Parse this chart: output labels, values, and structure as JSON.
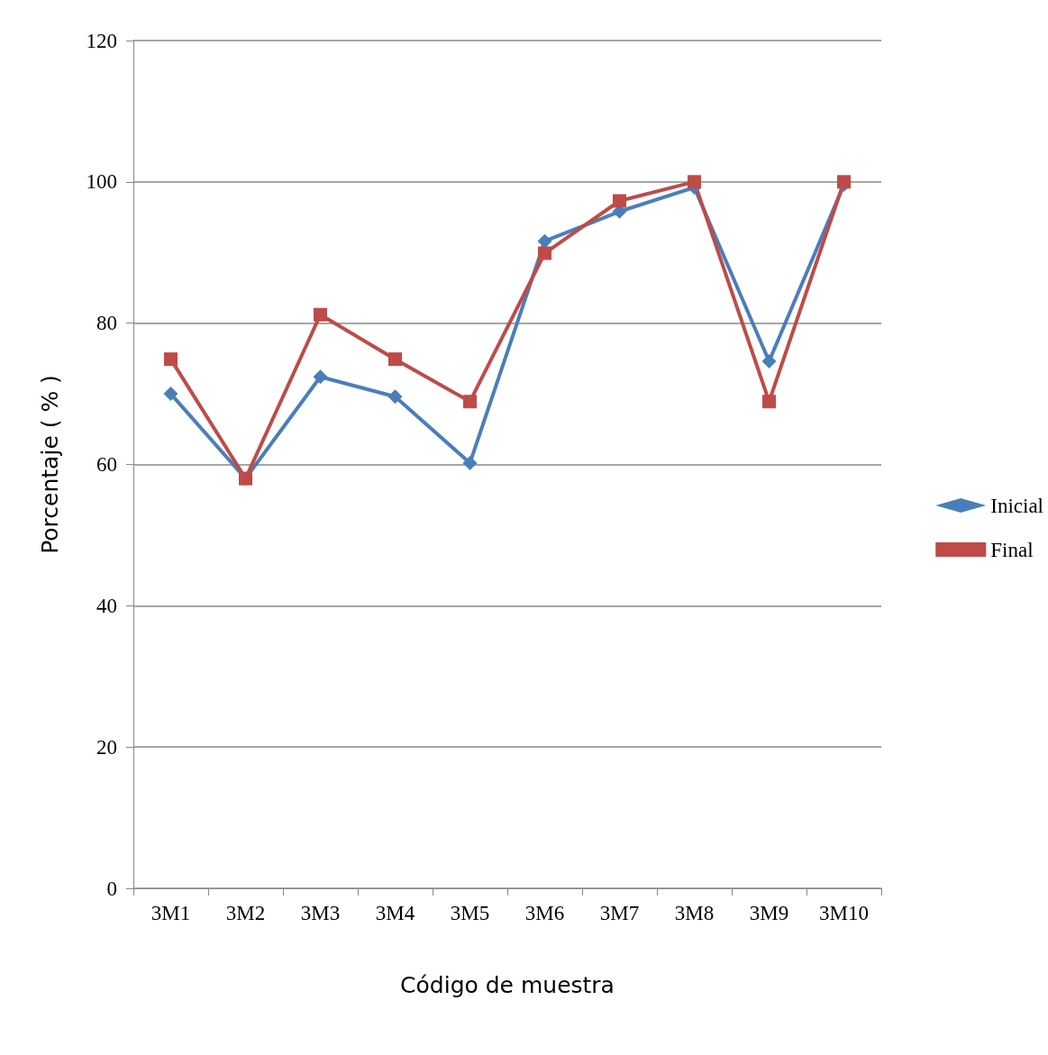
{
  "chart_data": {
    "type": "line",
    "xlabel": "Código de muestra",
    "ylabel": "Porcentaje ( % )",
    "categories": [
      "3M1",
      "3M2",
      "3M3",
      "3M4",
      "3M5",
      "3M6",
      "3M7",
      "3M8",
      "3M9",
      "3M10"
    ],
    "series": [
      {
        "name": "Inicial",
        "color": "#4a7ebb",
        "marker": "diamond",
        "values": [
          70,
          58,
          72.4,
          69.6,
          60.2,
          91.6,
          95.8,
          99.2,
          74.6,
          99.6
        ]
      },
      {
        "name": "Final",
        "color": "#be4b48",
        "marker": "square",
        "values": [
          74.9,
          58,
          81.2,
          74.9,
          68.9,
          89.9,
          97.3,
          100,
          68.9,
          100
        ]
      }
    ],
    "ylim": [
      0,
      120
    ],
    "yticks": [
      0,
      20,
      40,
      60,
      80,
      100,
      120
    ],
    "grid": "y",
    "legend": "right",
    "line_style": "solid"
  }
}
